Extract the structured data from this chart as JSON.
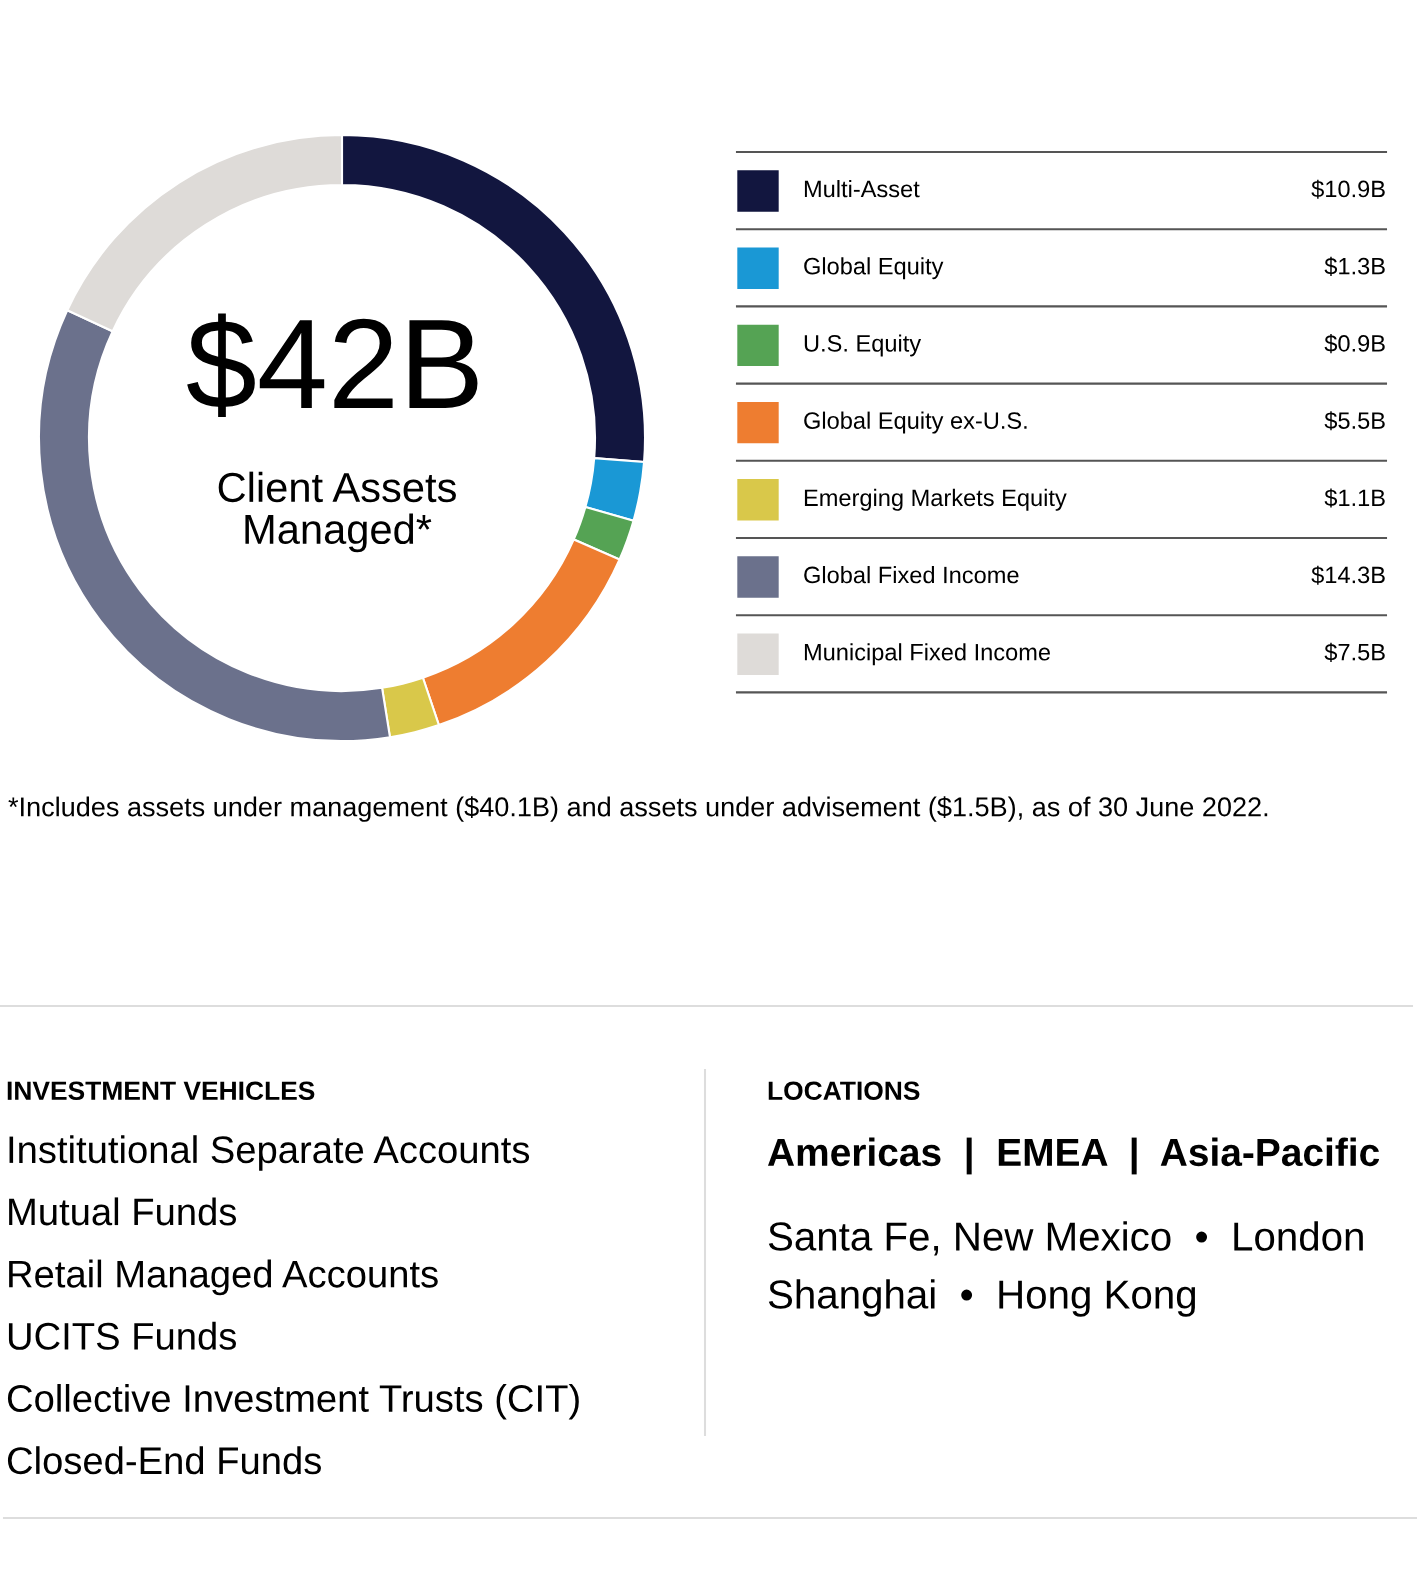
{
  "chart_data": {
    "type": "donut",
    "categories": [
      "Multi-Asset",
      "Global Equity",
      "U.S. Equity",
      "Global Equity ex-U.S.",
      "Emerging Markets Equity",
      "Global Fixed Income",
      "Municipal Fixed Income"
    ],
    "values": [
      10.9,
      1.3,
      0.9,
      5.5,
      1.1,
      14.3,
      7.5
    ],
    "value_labels": [
      "$10.9B",
      "$1.3B",
      "$0.9B",
      "$5.5B",
      "$1.1B",
      "$14.3B",
      "$7.5B"
    ],
    "colors": [
      "#12163f",
      "#1a98d5",
      "#55a354",
      "#ee7d30",
      "#d9c84a",
      "#6b718c",
      "#dedbd8"
    ],
    "legend": "right",
    "annotations": [
      "$42B",
      "Client Assets\nManaged*",
      "*Includes assets under management ($40.1B) and assets under advisement ($1.5B), as of 30 June 2022.",
      "INVESTMENT VEHICLES",
      "Institutional Separate Accounts",
      "Mutual Funds",
      "Retail Managed Accounts",
      "UCITS Funds",
      "Collective Investment Trusts (CIT)",
      "Closed-End Funds",
      "LOCATIONS",
      "Americas  |  EMEA  |  Asia-Pacific",
      "Santa Fe, New Mexico  •  London",
      "Shanghai  •  Hong Kong"
    ]
  }
}
